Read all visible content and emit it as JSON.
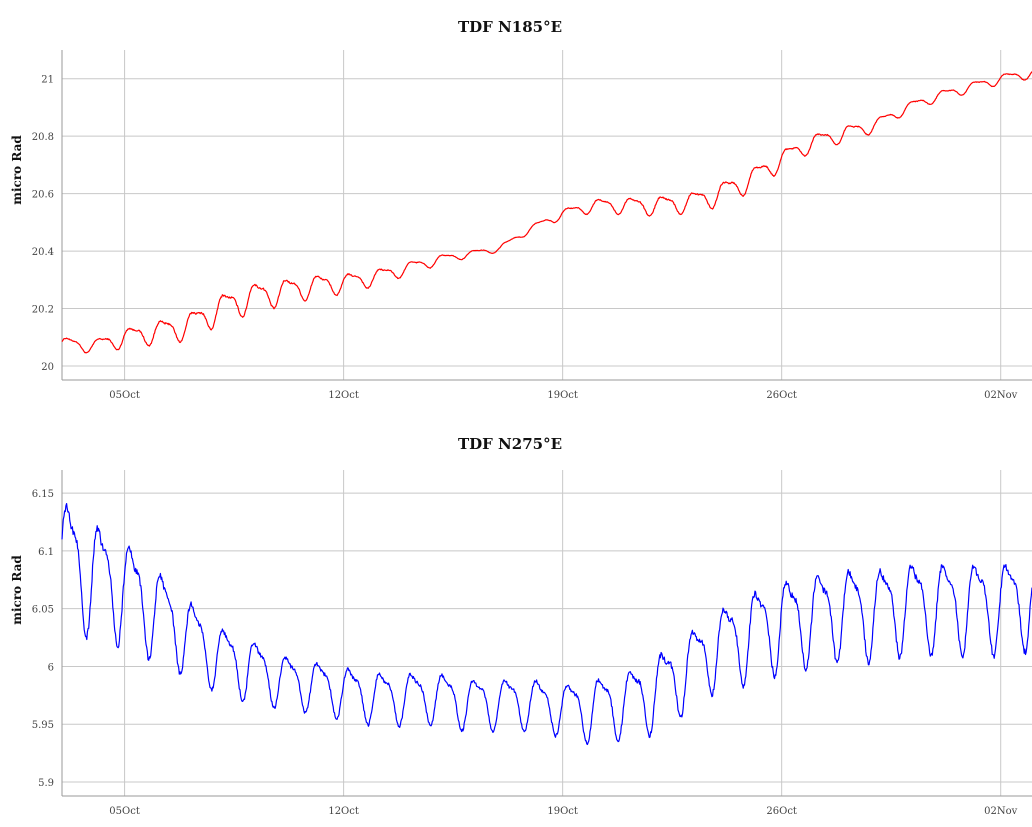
{
  "chart_data": [
    {
      "type": "line",
      "title": "TDF N185°E",
      "ylabel": "micro Rad",
      "xlabel": "",
      "color": "#ff0000",
      "ylim": [
        20,
        21.1
      ],
      "yticks": [
        20,
        20.2,
        20.4,
        20.6,
        20.8,
        21
      ],
      "ytick_labels": [
        "20",
        "20.2",
        "20.4",
        "20.6",
        "20.8",
        "21"
      ],
      "xlim": [
        "2009-10-03",
        "2009-11-03"
      ],
      "xticks": [
        "2009-10-05",
        "2009-10-12",
        "2009-10-19",
        "2009-10-26",
        "2009-11-02"
      ],
      "xtick_labels": [
        "05Oct",
        "12Oct",
        "19Oct",
        "26Oct",
        "02Nov"
      ],
      "grid": true,
      "legend": "none",
      "series": [
        {
          "x": [
            "2009-10-03",
            "2009-10-04",
            "2009-10-05",
            "2009-10-06",
            "2009-10-07",
            "2009-10-08",
            "2009-10-09",
            "2009-10-10",
            "2009-10-11",
            "2009-10-12",
            "2009-10-13",
            "2009-10-14",
            "2009-10-15",
            "2009-10-16",
            "2009-10-17",
            "2009-10-18",
            "2009-10-19",
            "2009-10-20",
            "2009-10-21",
            "2009-10-22",
            "2009-10-23",
            "2009-10-24",
            "2009-10-25",
            "2009-10-26",
            "2009-10-27",
            "2009-10-28",
            "2009-10-29",
            "2009-10-30",
            "2009-10-31",
            "2009-11-01",
            "2009-11-02",
            "2009-11-03"
          ],
          "y": [
            20.08,
            20.07,
            20.1,
            20.12,
            20.14,
            20.2,
            20.24,
            20.26,
            20.28,
            20.29,
            20.31,
            20.34,
            20.37,
            20.39,
            20.41,
            20.48,
            20.53,
            20.56,
            20.56,
            20.56,
            20.57,
            20.6,
            20.65,
            20.72,
            20.78,
            20.81,
            20.84,
            20.9,
            20.94,
            20.97,
            21.0,
            21.02
          ],
          "amplitude": [
            0.02,
            0.02,
            0.03,
            0.035,
            0.04,
            0.045,
            0.045,
            0.04,
            0.035,
            0.03,
            0.025,
            0.02,
            0.015,
            0.01,
            0.01,
            0.01,
            0.015,
            0.02,
            0.025,
            0.03,
            0.03,
            0.035,
            0.035,
            0.03,
            0.025,
            0.025,
            0.02,
            0.015,
            0.015,
            0.015,
            0.015,
            0.015
          ]
        }
      ]
    },
    {
      "type": "line",
      "title": "TDF N275°E",
      "ylabel": "micro Rad",
      "xlabel": "",
      "color": "#0000ff",
      "ylim": [
        5.9,
        6.17
      ],
      "yticks": [
        5.9,
        5.95,
        6.0,
        6.05,
        6.1,
        6.15
      ],
      "ytick_labels": [
        "5.9",
        "5.95",
        "6",
        "6.05",
        "6.1",
        "6.15"
      ],
      "xlim": [
        "2009-10-03",
        "2009-11-03"
      ],
      "xticks": [
        "2009-10-05",
        "2009-10-12",
        "2009-10-19",
        "2009-10-26",
        "2009-11-02"
      ],
      "xtick_labels": [
        "05Oct",
        "12Oct",
        "19Oct",
        "26Oct",
        "02Nov"
      ],
      "grid": true,
      "legend": "none",
      "series": [
        {
          "x": [
            "2009-10-03",
            "2009-10-04",
            "2009-10-05",
            "2009-10-06",
            "2009-10-07",
            "2009-10-08",
            "2009-10-09",
            "2009-10-10",
            "2009-10-11",
            "2009-10-12",
            "2009-10-13",
            "2009-10-14",
            "2009-10-15",
            "2009-10-16",
            "2009-10-17",
            "2009-10-18",
            "2009-10-19",
            "2009-10-20",
            "2009-10-21",
            "2009-10-22",
            "2009-10-23",
            "2009-10-24",
            "2009-10-25",
            "2009-10-26",
            "2009-10-27",
            "2009-10-28",
            "2009-10-29",
            "2009-10-30",
            "2009-10-31",
            "2009-11-01",
            "2009-11-02",
            "2009-11-03"
          ],
          "y": [
            6.1,
            6.08,
            6.07,
            6.05,
            6.03,
            6.01,
            6.0,
            5.99,
            5.985,
            5.98,
            5.975,
            5.975,
            5.975,
            5.97,
            5.97,
            5.97,
            5.965,
            5.965,
            5.97,
            5.98,
            6.0,
            6.02,
            6.03,
            6.04,
            6.045,
            6.05,
            6.05,
            6.055,
            6.055,
            6.055,
            6.055,
            6.06
          ],
          "amplitude": [
            0.045,
            0.045,
            0.04,
            0.035,
            0.03,
            0.025,
            0.025,
            0.02,
            0.02,
            0.02,
            0.02,
            0.02,
            0.02,
            0.02,
            0.02,
            0.02,
            0.02,
            0.025,
            0.025,
            0.03,
            0.03,
            0.03,
            0.035,
            0.035,
            0.035,
            0.035,
            0.035,
            0.035,
            0.035,
            0.035,
            0.035,
            0.035
          ]
        }
      ]
    }
  ]
}
